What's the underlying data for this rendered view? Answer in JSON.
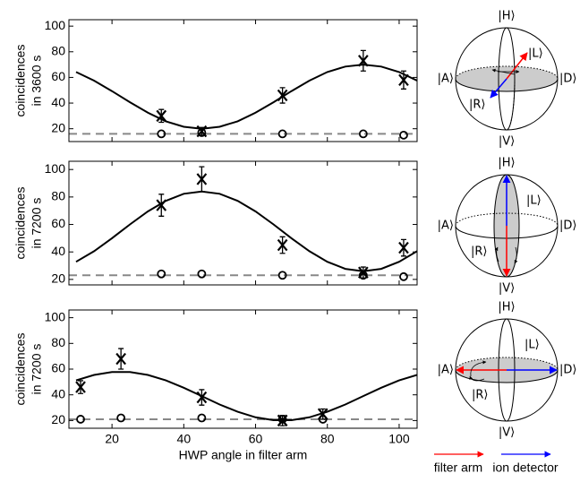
{
  "chart_data": [
    {
      "type": "line",
      "ylabel": [
        "coincidences",
        "in 3600 s"
      ],
      "xlim": [
        8,
        105
      ],
      "ylim": [
        10,
        105
      ],
      "xticks": [
        20,
        40,
        60,
        80,
        100
      ],
      "yticks": [
        20,
        40,
        60,
        80,
        100
      ],
      "xtick_labels": false,
      "fit": {
        "x": [
          10,
          15,
          20,
          25,
          30,
          35,
          40,
          45,
          50,
          55,
          60,
          65,
          70,
          75,
          80,
          85,
          90,
          95,
          100,
          105
        ],
        "values": [
          64.2,
          57.5,
          49.3,
          40.7,
          32.5,
          25.8,
          21.5,
          20,
          21.5,
          25.8,
          32.5,
          40.7,
          49.3,
          57.5,
          64.2,
          68.5,
          70,
          68.5,
          64.2,
          57.5
        ]
      },
      "coincidences": {
        "x": [
          33.75,
          45,
          67.5,
          90,
          101.25
        ],
        "values": [
          30,
          18,
          46,
          73,
          58
        ],
        "errors": [
          5,
          3,
          6,
          8,
          7
        ]
      },
      "background": {
        "x": [
          33.75,
          45,
          67.5,
          90,
          101.25
        ],
        "values": [
          16,
          17,
          16,
          16,
          15
        ]
      },
      "background_level": 16
    },
    {
      "type": "line",
      "ylabel": [
        "coincidences",
        "in 7200 s"
      ],
      "xlim": [
        8,
        105
      ],
      "ylim": [
        16,
        106
      ],
      "xticks": [
        20,
        40,
        60,
        80,
        100
      ],
      "yticks": [
        20,
        40,
        60,
        80,
        100
      ],
      "xtick_labels": false,
      "fit": {
        "x": [
          10,
          15,
          20,
          25,
          30,
          35,
          40,
          45,
          50,
          55,
          60,
          65,
          70,
          75,
          80,
          85,
          90,
          95,
          100,
          105
        ],
        "values": [
          32.8,
          40.5,
          50,
          60,
          69.5,
          77.2,
          82.3,
          84,
          82.3,
          77.2,
          69.5,
          60,
          50,
          40.5,
          32.8,
          27.7,
          26,
          27.7,
          32.8,
          40.5
        ]
      },
      "coincidences": {
        "x": [
          33.75,
          45,
          67.5,
          90,
          101.25
        ],
        "values": [
          74,
          93,
          45,
          25,
          43
        ],
        "errors": [
          8,
          9,
          6,
          4,
          6
        ]
      },
      "background": {
        "x": [
          33.75,
          45,
          67.5,
          90,
          101.25
        ],
        "values": [
          24,
          24,
          23,
          23,
          22
        ]
      },
      "background_level": 23
    },
    {
      "type": "line",
      "ylabel": [
        "coincidences",
        "in 7200 s"
      ],
      "xlabel": "HWP angle in filter arm",
      "xlim": [
        8,
        105
      ],
      "ylim": [
        14,
        106
      ],
      "xticks": [
        20,
        40,
        60,
        80,
        100
      ],
      "yticks": [
        20,
        40,
        60,
        80,
        100
      ],
      "xtick_labels": true,
      "fit": {
        "x": [
          10,
          15,
          20,
          25,
          30,
          35,
          40,
          45,
          50,
          55,
          60,
          65,
          70,
          75,
          80,
          85,
          90,
          95,
          100,
          105
        ],
        "values": [
          51.2,
          55.5,
          57.7,
          57.7,
          55.5,
          51.2,
          45.5,
          39,
          32.5,
          26.8,
          22.5,
          20.3,
          20.3,
          22.5,
          26.8,
          32.5,
          39,
          45.5,
          51.2,
          55.5
        ]
      },
      "coincidences": {
        "x": [
          11.25,
          22.5,
          45,
          67.5,
          78.75
        ],
        "values": [
          46,
          68,
          38,
          20,
          25
        ],
        "errors": [
          5,
          8,
          6,
          4,
          4
        ]
      },
      "background": {
        "x": [
          11.25,
          22.5,
          45,
          67.5,
          78.75
        ],
        "values": [
          21,
          22,
          22,
          21,
          21
        ]
      },
      "background_level": 21
    }
  ],
  "bloch": {
    "labels": {
      "H": "|H⟩",
      "V": "|V⟩",
      "A": "|A⟩",
      "D": "|D⟩",
      "L": "|L⟩",
      "R": "|R⟩"
    },
    "legend": [
      {
        "name": "filter arm",
        "color": "#ff0000"
      },
      {
        "name": "ion detector",
        "color": "#0000ff"
      }
    ]
  }
}
